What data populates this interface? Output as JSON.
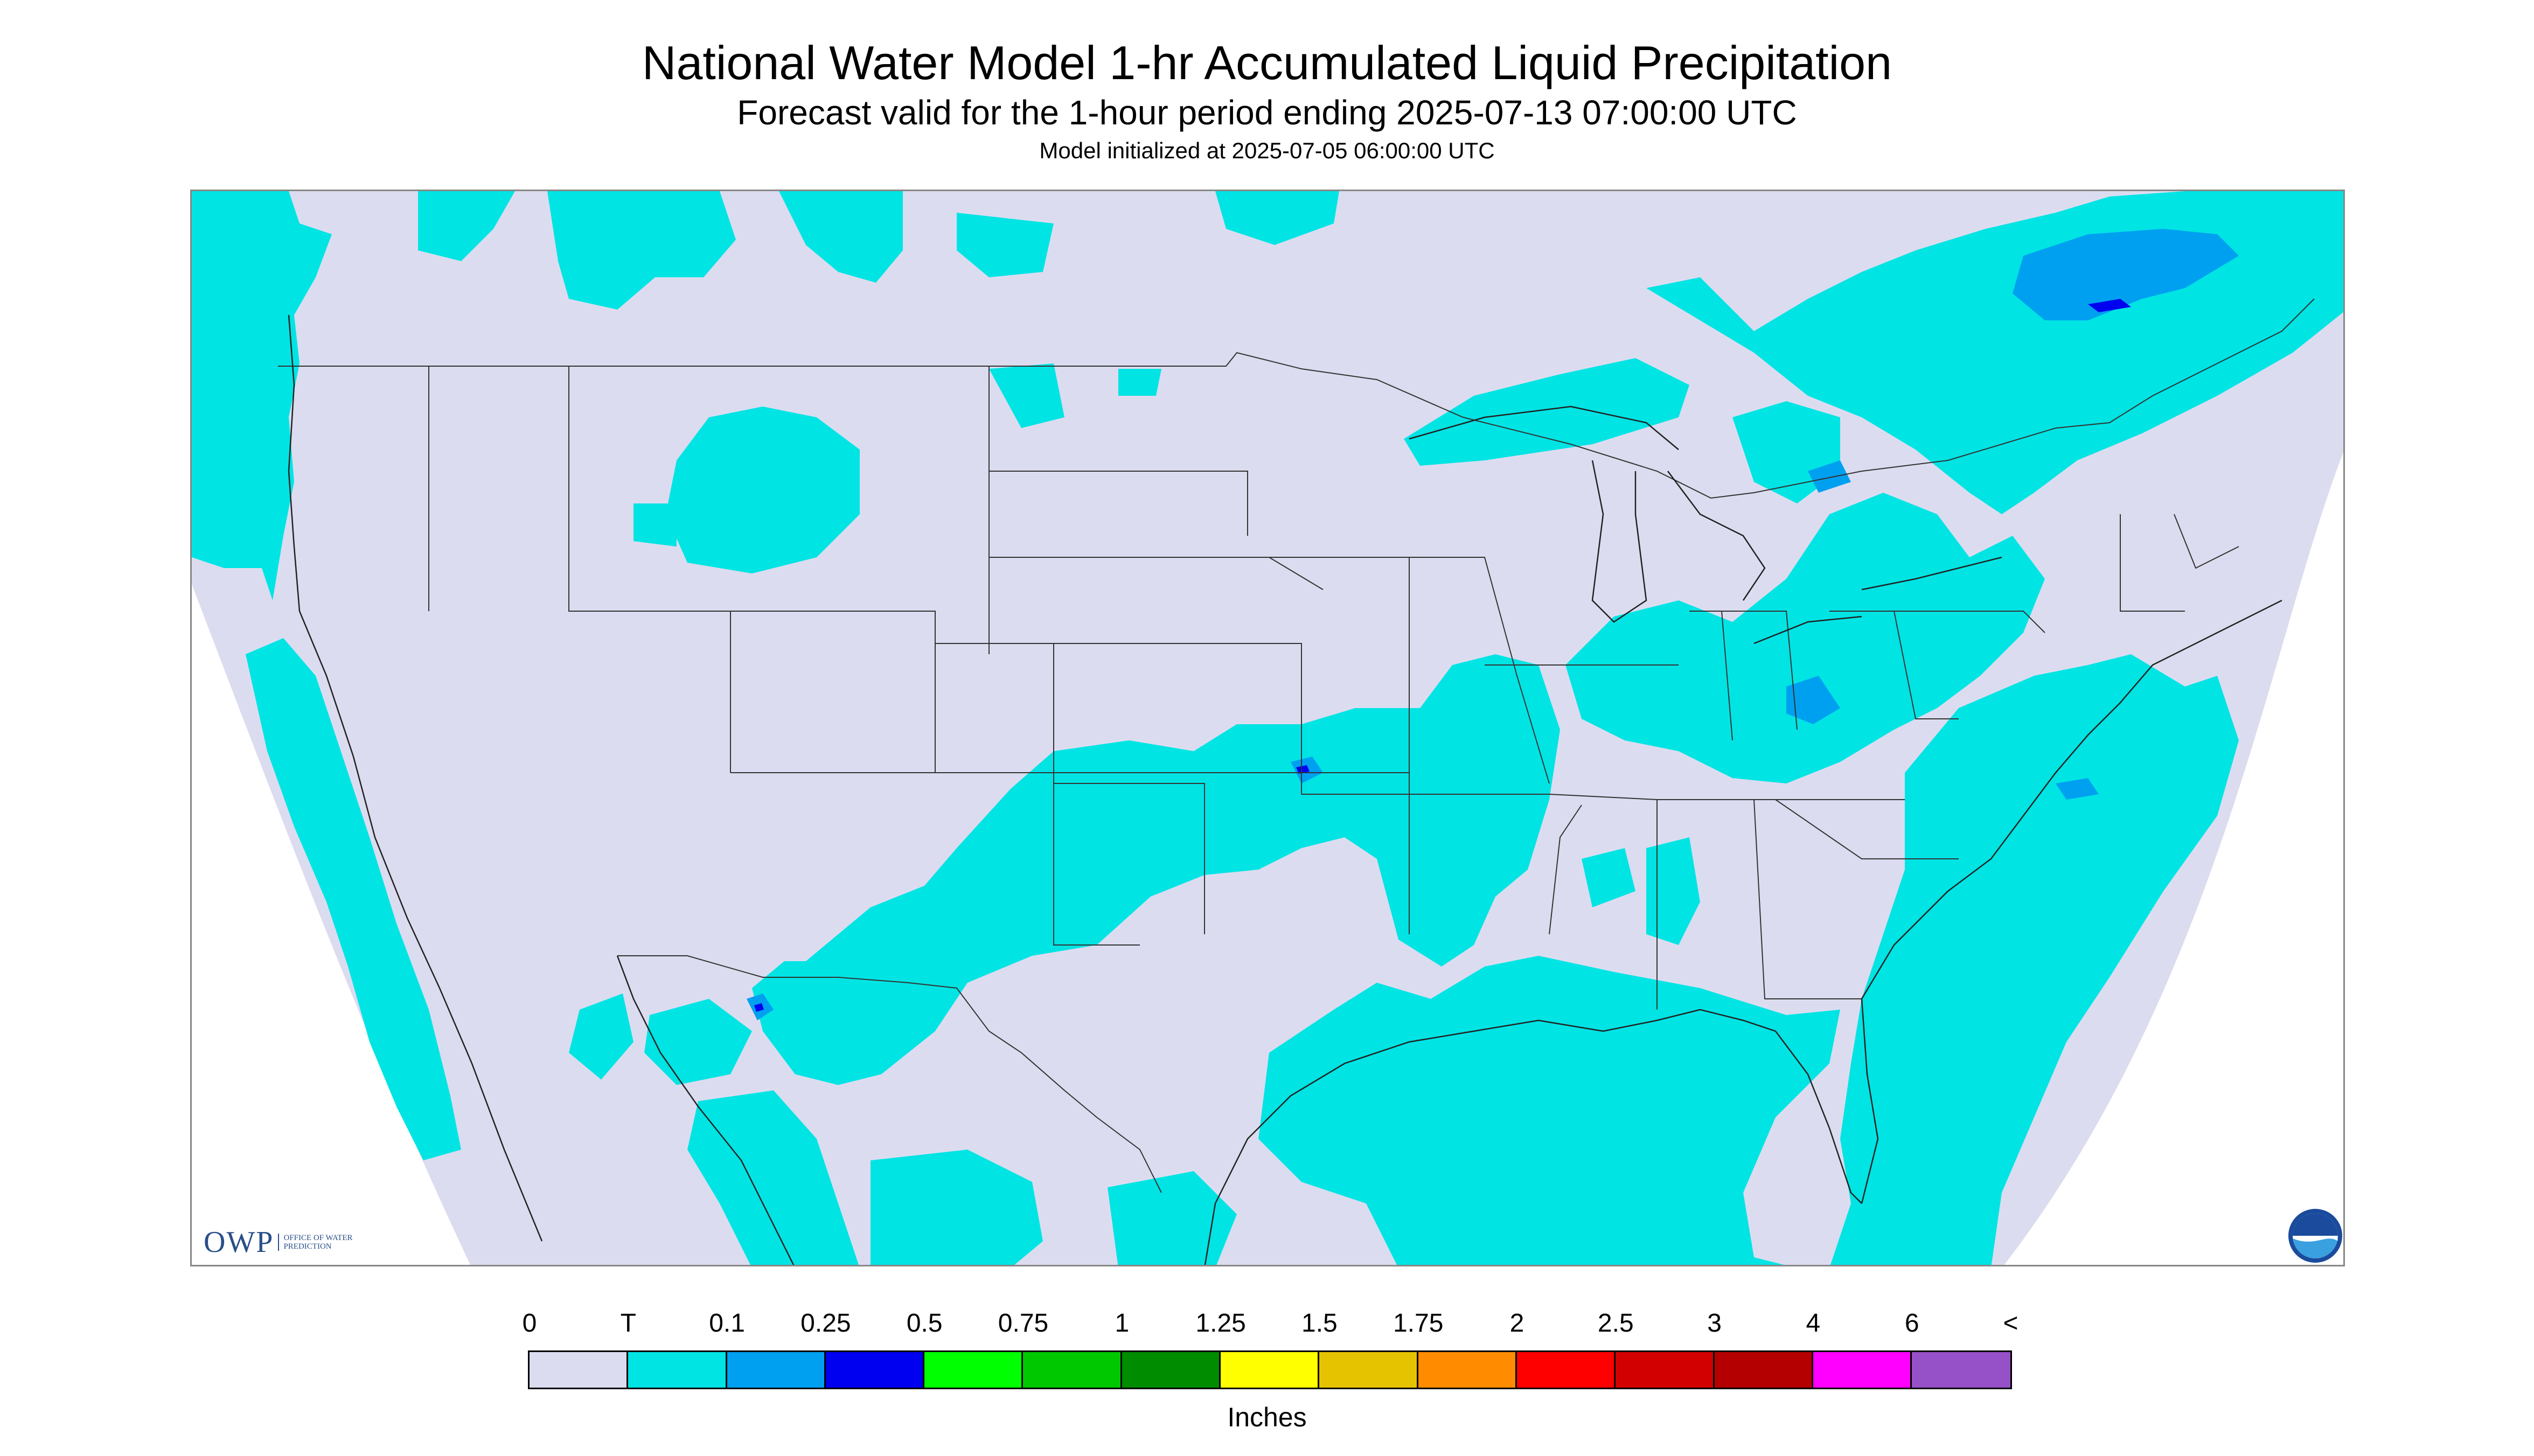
{
  "title": "National Water Model 1-hr Accumulated Liquid Precipitation",
  "subtitle": "Forecast valid for the 1-hour period ending 2025-07-13 07:00:00 UTC",
  "model_init": "Model initialized at 2025-07-05 06:00:00 UTC",
  "logos": {
    "owp_letters": "OWP",
    "owp_text": "OFFICE OF WATER PREDICTION",
    "noaa_text": "NOAA"
  },
  "legend": {
    "units": "Inches",
    "tick_labels": [
      "0",
      "T",
      "0.1",
      "0.25",
      "0.5",
      "0.75",
      "1",
      "1.25",
      "1.5",
      "1.75",
      "2",
      "2.5",
      "3",
      "4",
      "6",
      "<"
    ],
    "colors": [
      "#dcdcf0",
      "#00e4e4",
      "#00a0f0",
      "#0000f0",
      "#00ff00",
      "#00c800",
      "#008c00",
      "#ffff00",
      "#e6c300",
      "#ff8c00",
      "#ff0000",
      "#d20000",
      "#b40000",
      "#ff00ff",
      "#9650c8"
    ]
  },
  "colors": {
    "no_precip": "#dcdcf0",
    "trace": "#00e4e4",
    "light": "#00a0f0",
    "moderate": "#0000f0",
    "background": "#ffffff"
  }
}
